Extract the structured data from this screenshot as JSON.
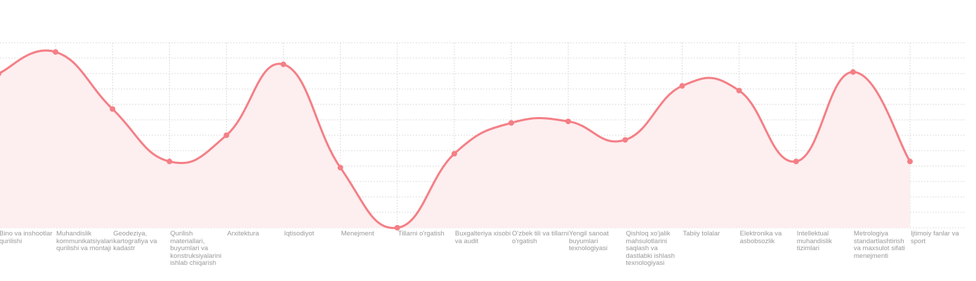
{
  "chart_data": {
    "type": "area",
    "categories": [
      "Bino va inshootlar qurilishi",
      "Muhandislik kommunikatsiyalari qurilishi va montaji",
      "Geodeziya, kartografiya va kadastr",
      "Qurilish materiallari, buyumlari va konstruksiyalarini ishlab chiqarish",
      "Arxitektura",
      "Iqtisodiyot",
      "Menejment",
      "Tillarni o'rgatish",
      "Buxgalteriya xisobi va audit",
      "O'zbek tili va tillarni o'rgatish",
      "Yengil sanoat buyumlari texnologiyasi",
      "Qishloq xo'jalik mahsulotlarini saqlash va dastlabki ishlash texnologiyasi",
      "Tabiiy tolalar",
      "Elektronika va asbobsozlik",
      "Intellektual muhandislik tizimlari",
      "Metrologiya standartlashtirish va maxsulot sifati menejmenti",
      "Ijtimoiy fanlar va sport"
    ],
    "values": [
      100,
      114,
      77,
      43,
      60,
      106,
      39,
      0,
      48,
      68,
      69,
      57,
      92,
      89,
      43,
      101,
      43
    ],
    "ylim": [
      0,
      120
    ],
    "grid": true,
    "legend": "none",
    "colors": {
      "line": "#f47f86",
      "fill": "#fdeeef",
      "grid": "#dcdcdc",
      "tick_text": "#9a9a9a"
    }
  }
}
